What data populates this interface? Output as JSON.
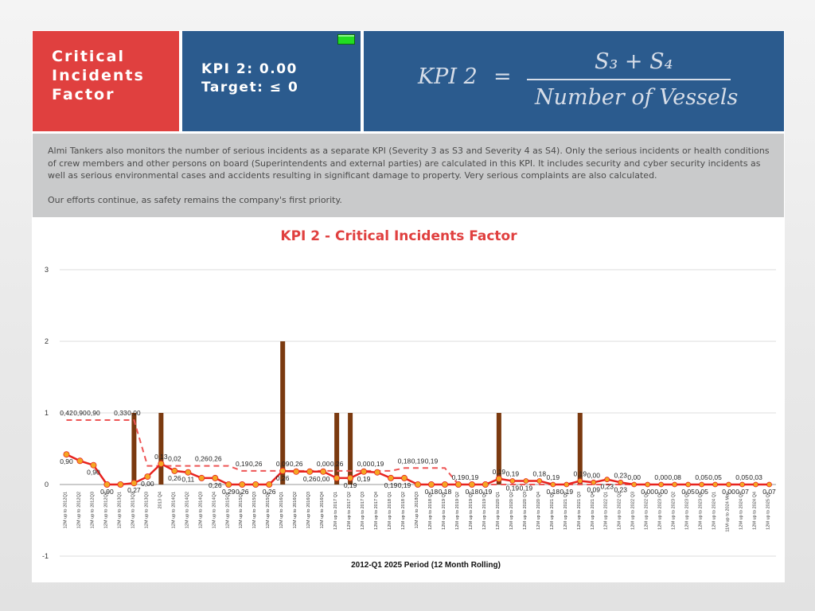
{
  "header": {
    "title": "Critical Incidents Factor",
    "kpi_value": "KPI 2: 0.00",
    "target": "Target: ≤ 0",
    "indicator_color": "#22dd22"
  },
  "formula": {
    "lhs": "KPI 2",
    "eq": "=",
    "numerator": "S₃ + S₄",
    "denominator": "Number of Vessels"
  },
  "description": {
    "p1": "Almi Tankers also monitors the number of serious incidents as a separate KPI (Severity 3 as S3 and Severity 4 as S4). Only the serious incidents or health conditions of crew members and other persons on board (Superintendents and external parties) are calculated in this KPI. It includes security and cyber security incidents as well as serious environmental cases and accidents resulting in significant damage to property. Very serious complaints are also calculated.",
    "p2": "Our efforts continue, as safety remains the company's first priority."
  },
  "colors": {
    "accent_red": "#e0403f",
    "header_blue": "#2b5b8e",
    "bar": "#7b3a10",
    "line": "#e8231f",
    "marker": "#f4a623",
    "target_dash": "#ee5555"
  },
  "chart_data": {
    "type": "bar",
    "title": "KPI 2 - Critical Incidents Factor",
    "xlabel": "2012-Q1 2025 Period (12 Month Rolling)",
    "ylabel": "",
    "ylim": [
      -1,
      3
    ],
    "yticks": [
      -1,
      0,
      1,
      2,
      3
    ],
    "grid": true,
    "categories": [
      "12M up to 2012Q1",
      "12M up to 2012Q2",
      "12M up to 2012Q3",
      "12M up to 2012Q4",
      "12M up to 2013Q1",
      "12M up to 2013Q2",
      "12M up to 2013Q3",
      "2013 Q4",
      "12M up to 2014Q1",
      "12M up to 2014Q2",
      "12M up to 2014Q3",
      "12M up to 2014Q4",
      "12M up to 2015Q1",
      "12M up to 2015Q2",
      "12M up to 2015Q3",
      "12M up to 2015Q4",
      "12M up to 2016Q1",
      "12M up to 2016Q2",
      "12M up to 2016Q3",
      "12M up to 2016Q4",
      "12M up to 2017 Q1",
      "12M up to 2017 Q2",
      "12M up to 2017 Q3",
      "12M up to 2017 Q4",
      "12M up to 2018 Q1",
      "12M up to 2018 Q2",
      "12M up to 2018Q3",
      "12M up to 2018 Q4",
      "12M up to 2019 Q1",
      "12M up to 2019 Q2",
      "12M up to 2019 Q3",
      "12M up to 2019 Q4",
      "12M up to 2020 Q1",
      "12M up to 2020 Q2",
      "12M up to 2020 Q3",
      "12M up to 2020 Q4",
      "12M up to 2021 Q1",
      "12M up to 2021 Q2",
      "12M up to 2021 Q3",
      "12M up to 2021 Q4",
      "12M up to 2022 Q1",
      "12M up to 2022 Q2",
      "12M up to 2022 Q3",
      "12M up to 2022 Q4",
      "12M up to 2023 Q1",
      "12M up to 2023 Q2",
      "12M up to 2023 Q3",
      "12M up to 2023 Q4",
      "12M up to 2024 Q1",
      "11M up to 2024 May",
      "12M up to 2024 Q3",
      "12M up to 2024 Q4",
      "12M up to 2025 Q1"
    ],
    "series": [
      {
        "values": [
          0,
          0,
          0,
          0,
          0,
          1,
          0,
          1,
          0,
          0,
          0,
          0,
          0,
          0,
          0,
          0,
          2,
          0,
          0,
          0,
          1,
          1,
          0,
          0,
          0,
          0,
          0,
          0,
          0,
          0,
          0,
          0,
          1,
          0,
          0,
          0,
          0,
          0,
          1,
          0,
          0,
          0,
          0,
          0,
          0,
          0,
          0,
          0,
          0,
          0,
          0,
          0,
          0
        ]
      },
      {
        "values": [
          0.42,
          0.33,
          0.27,
          0,
          0,
          0.02,
          0.11,
          0.29,
          0.19,
          0.17,
          0.09,
          0.09,
          0,
          0,
          0,
          0,
          0.19,
          0.18,
          0.18,
          0.18,
          0.09,
          0.09,
          0.18,
          0.17,
          0.09,
          0.09,
          0,
          0,
          0,
          0,
          0,
          0,
          0.08,
          0.05,
          0.05,
          0.05,
          0,
          0,
          0.05,
          0.03,
          0.07,
          0.03,
          0,
          0,
          0,
          0,
          0,
          0,
          0,
          0,
          0,
          0,
          0
        ]
      },
      {
        "values": [
          0.9,
          0.9,
          0.9,
          0.9,
          0.9,
          0.9,
          0.26,
          0.26,
          0.26,
          0.26,
          0.26,
          0.26,
          0.26,
          0.19,
          0.19,
          0.19,
          0.19,
          0.19,
          0.19,
          0.19,
          0.19,
          0.19,
          0.19,
          0.19,
          0.19,
          0.23,
          0.23,
          0.23,
          0.23,
          0,
          0,
          0,
          0,
          0,
          0,
          0,
          0,
          0,
          0,
          0,
          0,
          0,
          0,
          0,
          0,
          0,
          0,
          0,
          0,
          0,
          0,
          0,
          0
        ]
      }
    ],
    "data_labels": [
      "0,42",
      "0,90",
      "0,90",
      "0,90",
      "0,90",
      "0,90",
      "0,33",
      "0,27",
      "0,00",
      "0,00",
      "0,13",
      "0,26",
      "0,02",
      "0,11",
      "0,26",
      "0,26",
      "0,26",
      "0,29",
      "0,19",
      "0,26",
      "0,26",
      "0,26",
      "0,09",
      "0,26",
      "0,26",
      "0,26",
      "0,00",
      "0,00",
      "0,26",
      "0,19",
      "0,00",
      "0,19",
      "0,19",
      "0,19",
      "0,18",
      "0,19",
      "0,19",
      "0,18",
      "0,19",
      "0,18",
      "0,19",
      "0,18",
      "0,19",
      "0,19",
      "0,19",
      "0,19",
      "0,19",
      "0,19",
      "0,18",
      "0,18",
      "0,19",
      "0,19",
      "0,19",
      "0,09",
      "0,00",
      "0,23",
      "0,23",
      "0,23",
      "0,00",
      "0,00",
      "0,00",
      "0,00",
      "0,08",
      "0,05",
      "0,05",
      "0,05",
      "0,05",
      "0,00",
      "0,05",
      "0,07",
      "0,03",
      "0,07"
    ]
  }
}
